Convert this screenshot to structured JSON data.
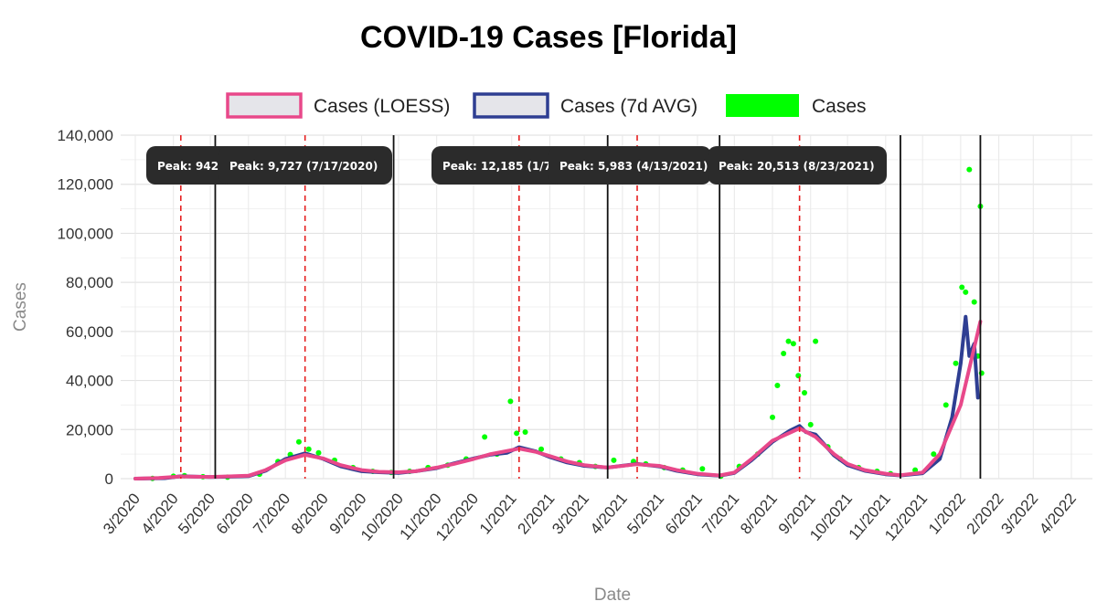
{
  "chart_data": {
    "type": "line",
    "title": "COVID-19 Cases [Florida]",
    "xlabel": "Date",
    "ylabel": "Cases",
    "ylim": [
      0,
      140000
    ],
    "xlim": [
      "2020-03-01",
      "2022-04-01"
    ],
    "grid": true,
    "legend_position": "top",
    "y_ticks": [
      0,
      20000,
      40000,
      60000,
      80000,
      100000,
      120000,
      140000
    ],
    "y_tick_labels": [
      "0",
      "20,000",
      "40,000",
      "60,000",
      "80,000",
      "100,000",
      "120,000",
      "140,000"
    ],
    "x_ticks": [
      "2020-03-01",
      "2020-04-01",
      "2020-05-01",
      "2020-06-01",
      "2020-07-01",
      "2020-08-01",
      "2020-09-01",
      "2020-10-01",
      "2020-11-01",
      "2020-12-01",
      "2021-01-01",
      "2021-02-01",
      "2021-03-01",
      "2021-04-01",
      "2021-05-01",
      "2021-06-01",
      "2021-07-01",
      "2021-08-01",
      "2021-09-01",
      "2021-10-01",
      "2021-11-01",
      "2021-12-01",
      "2022-01-01",
      "2022-02-01",
      "2022-03-01",
      "2022-04-01"
    ],
    "x_tick_labels": [
      "3/2020",
      "4/2020",
      "5/2020",
      "6/2020",
      "7/2020",
      "8/2020",
      "9/2020",
      "10/2020",
      "11/2020",
      "12/2020",
      "1/2021",
      "2/2021",
      "3/2021",
      "4/2021",
      "5/2021",
      "6/2021",
      "7/2021",
      "8/2021",
      "9/2021",
      "10/2021",
      "11/2021",
      "12/2021",
      "1/2022",
      "2/2022",
      "3/2022",
      "4/2022"
    ],
    "legend": [
      {
        "name": "Cases (LOESS)",
        "color": "#e8488a",
        "style": "box"
      },
      {
        "name": "Cases (7d AVG)",
        "color": "#2e3e92",
        "style": "box"
      },
      {
        "name": "Cases",
        "color": "#00ff00",
        "style": "fill"
      }
    ],
    "peaks": [
      {
        "date": "2020-04-07",
        "label": "Peak: 942"
      },
      {
        "date": "2020-07-17",
        "label": "Peak: 9,727 (7/17/2020)"
      },
      {
        "date": "2021-01-07",
        "label": "Peak: 12,185 (1/7"
      },
      {
        "date": "2021-04-13",
        "label": "Peak: 5,983 (4/13/2021)"
      },
      {
        "date": "2021-08-23",
        "label": "Peak: 20,513 (8/23/2021)"
      }
    ],
    "boundaries": [
      "2020-05-05",
      "2020-09-27",
      "2021-03-20",
      "2021-06-19",
      "2021-11-13",
      "2022-01-17"
    ],
    "series": [
      {
        "name": "Cases (LOESS)",
        "color": "#e8488a",
        "points": [
          [
            "2020-03-01",
            0
          ],
          [
            "2020-03-20",
            300
          ],
          [
            "2020-04-07",
            900
          ],
          [
            "2020-05-01",
            700
          ],
          [
            "2020-06-01",
            1200
          ],
          [
            "2020-06-15",
            3500
          ],
          [
            "2020-07-01",
            7500
          ],
          [
            "2020-07-17",
            9700
          ],
          [
            "2020-08-01",
            8200
          ],
          [
            "2020-08-15",
            5500
          ],
          [
            "2020-09-01",
            3500
          ],
          [
            "2020-09-15",
            2800
          ],
          [
            "2020-10-01",
            2600
          ],
          [
            "2020-10-15",
            3000
          ],
          [
            "2020-11-01",
            4500
          ],
          [
            "2020-11-15",
            6000
          ],
          [
            "2020-12-01",
            8000
          ],
          [
            "2020-12-15",
            10000
          ],
          [
            "2021-01-07",
            12200
          ],
          [
            "2021-01-20",
            11000
          ],
          [
            "2021-02-01",
            9200
          ],
          [
            "2021-02-15",
            7000
          ],
          [
            "2021-03-01",
            5500
          ],
          [
            "2021-03-20",
            4500
          ],
          [
            "2021-04-13",
            5900
          ],
          [
            "2021-05-01",
            5200
          ],
          [
            "2021-05-15",
            3500
          ],
          [
            "2021-06-01",
            2000
          ],
          [
            "2021-06-19",
            1300
          ],
          [
            "2021-07-01",
            2500
          ],
          [
            "2021-07-15",
            8000
          ],
          [
            "2021-08-01",
            15500
          ],
          [
            "2021-08-23",
            20500
          ],
          [
            "2021-09-05",
            17000
          ],
          [
            "2021-09-20",
            10000
          ],
          [
            "2021-10-01",
            6000
          ],
          [
            "2021-10-15",
            3500
          ],
          [
            "2021-11-01",
            2000
          ],
          [
            "2021-11-13",
            1400
          ],
          [
            "2021-12-01",
            2500
          ],
          [
            "2021-12-15",
            10000
          ],
          [
            "2022-01-01",
            30000
          ],
          [
            "2022-01-17",
            64000
          ]
        ]
      },
      {
        "name": "Cases (7d AVG)",
        "color": "#2e3e92",
        "points": [
          [
            "2020-03-01",
            0
          ],
          [
            "2020-03-25",
            200
          ],
          [
            "2020-04-07",
            950
          ],
          [
            "2020-05-01",
            650
          ],
          [
            "2020-06-01",
            1000
          ],
          [
            "2020-06-15",
            3200
          ],
          [
            "2020-07-01",
            8000
          ],
          [
            "2020-07-17",
            10300
          ],
          [
            "2020-08-01",
            8000
          ],
          [
            "2020-08-15",
            5000
          ],
          [
            "2020-09-01",
            3000
          ],
          [
            "2020-09-15",
            2600
          ],
          [
            "2020-10-01",
            2300
          ],
          [
            "2020-10-15",
            3000
          ],
          [
            "2020-11-01",
            4300
          ],
          [
            "2020-11-15",
            6200
          ],
          [
            "2020-12-01",
            8200
          ],
          [
            "2020-12-15",
            9800
          ],
          [
            "2020-12-28",
            10500
          ],
          [
            "2021-01-07",
            12800
          ],
          [
            "2021-01-20",
            11200
          ],
          [
            "2021-02-01",
            8800
          ],
          [
            "2021-02-15",
            6600
          ],
          [
            "2021-03-01",
            5200
          ],
          [
            "2021-03-20",
            4500
          ],
          [
            "2021-04-13",
            6000
          ],
          [
            "2021-05-01",
            5000
          ],
          [
            "2021-05-15",
            3200
          ],
          [
            "2021-06-01",
            1800
          ],
          [
            "2021-06-19",
            1200
          ],
          [
            "2021-07-01",
            2300
          ],
          [
            "2021-07-15",
            7500
          ],
          [
            "2021-08-01",
            15000
          ],
          [
            "2021-08-15",
            19500
          ],
          [
            "2021-08-23",
            21500
          ],
          [
            "2021-08-28",
            19000
          ],
          [
            "2021-09-05",
            18000
          ],
          [
            "2021-09-20",
            9500
          ],
          [
            "2021-10-01",
            5500
          ],
          [
            "2021-10-15",
            3200
          ],
          [
            "2021-11-01",
            1800
          ],
          [
            "2021-11-13",
            1300
          ],
          [
            "2021-12-01",
            2200
          ],
          [
            "2021-12-15",
            8000
          ],
          [
            "2021-12-25",
            25000
          ],
          [
            "2022-01-01",
            47000
          ],
          [
            "2022-01-05",
            66000
          ],
          [
            "2022-01-08",
            50000
          ],
          [
            "2022-01-12",
            55000
          ],
          [
            "2022-01-15",
            33000
          ]
        ]
      }
    ],
    "cases_points": [
      [
        "2020-03-15",
        100
      ],
      [
        "2020-04-01",
        1000
      ],
      [
        "2020-04-10",
        1200
      ],
      [
        "2020-04-25",
        800
      ],
      [
        "2020-05-15",
        600
      ],
      [
        "2020-06-10",
        1800
      ],
      [
        "2020-06-25",
        7000
      ],
      [
        "2020-07-05",
        9800
      ],
      [
        "2020-07-12",
        15000
      ],
      [
        "2020-07-20",
        12000
      ],
      [
        "2020-07-28",
        10500
      ],
      [
        "2020-08-10",
        7500
      ],
      [
        "2020-08-25",
        4500
      ],
      [
        "2020-09-10",
        3000
      ],
      [
        "2020-09-25",
        2500
      ],
      [
        "2020-10-10",
        3000
      ],
      [
        "2020-10-25",
        4500
      ],
      [
        "2020-11-10",
        5500
      ],
      [
        "2020-11-25",
        8000
      ],
      [
        "2020-12-10",
        17000
      ],
      [
        "2020-12-20",
        10000
      ],
      [
        "2020-12-31",
        31500
      ],
      [
        "2021-01-05",
        18500
      ],
      [
        "2021-01-12",
        19000
      ],
      [
        "2021-01-25",
        12000
      ],
      [
        "2021-02-10",
        8000
      ],
      [
        "2021-02-25",
        6500
      ],
      [
        "2021-03-10",
        5000
      ],
      [
        "2021-03-25",
        7500
      ],
      [
        "2021-04-10",
        7000
      ],
      [
        "2021-04-20",
        6000
      ],
      [
        "2021-05-05",
        4500
      ],
      [
        "2021-05-20",
        3500
      ],
      [
        "2021-06-05",
        4000
      ],
      [
        "2021-06-20",
        1000
      ],
      [
        "2021-07-05",
        5000
      ],
      [
        "2021-07-20",
        10000
      ],
      [
        "2021-08-01",
        25000
      ],
      [
        "2021-08-05",
        38000
      ],
      [
        "2021-08-10",
        51000
      ],
      [
        "2021-08-14",
        56000
      ],
      [
        "2021-08-18",
        55000
      ],
      [
        "2021-08-22",
        42000
      ],
      [
        "2021-08-27",
        35000
      ],
      [
        "2021-09-01",
        22000
      ],
      [
        "2021-09-05",
        56000
      ],
      [
        "2021-09-15",
        13000
      ],
      [
        "2021-09-25",
        8000
      ],
      [
        "2021-10-10",
        4500
      ],
      [
        "2021-10-25",
        3000
      ],
      [
        "2021-11-05",
        2000
      ],
      [
        "2021-11-25",
        3500
      ],
      [
        "2021-12-10",
        10000
      ],
      [
        "2021-12-20",
        30000
      ],
      [
        "2021-12-28",
        47000
      ],
      [
        "2022-01-02",
        78000
      ],
      [
        "2022-01-05",
        76000
      ],
      [
        "2022-01-08",
        126000
      ],
      [
        "2022-01-12",
        72000
      ],
      [
        "2022-01-15",
        50000
      ],
      [
        "2022-01-17",
        111000
      ],
      [
        "2022-01-18",
        43000
      ]
    ]
  }
}
